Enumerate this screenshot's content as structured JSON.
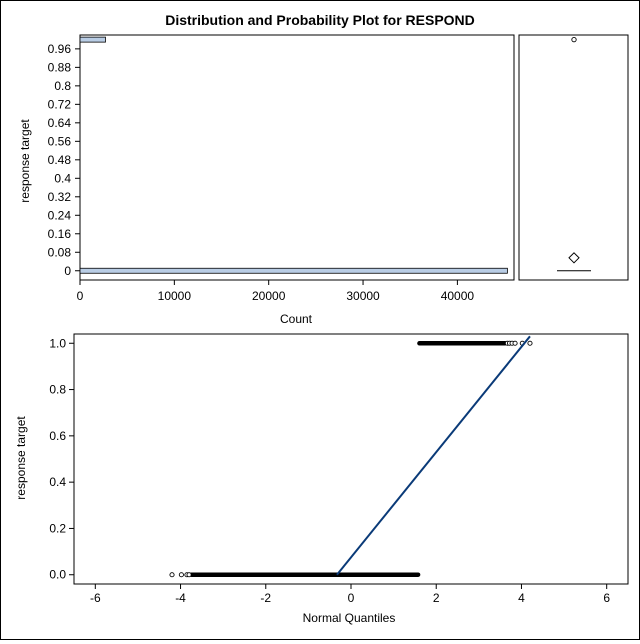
{
  "chart_data": [
    {
      "type": "bar",
      "orientation": "horizontal",
      "title": "Distribution and Probability Plot for RESPOND",
      "xlabel": "Count",
      "ylabel": "response target",
      "xlim": [
        0,
        46000
      ],
      "ylim": [
        -0.04,
        1.02
      ],
      "x_ticks": [
        0,
        10000,
        20000,
        30000,
        40000
      ],
      "y_ticks": [
        0,
        0.08,
        0.16,
        0.24,
        0.32,
        0.4,
        0.48,
        0.56,
        0.64,
        0.72,
        0.8,
        0.88,
        0.96
      ],
      "bars": [
        {
          "y": 0,
          "count": 45300
        },
        {
          "y": 1,
          "count": 2700
        }
      ],
      "bar_color": "#b9cde5",
      "grid": false
    },
    {
      "type": "box",
      "ylim": [
        -0.04,
        1.02
      ],
      "outliers": [
        1
      ],
      "mean": 0.056,
      "median": 0,
      "q1": 0,
      "q3": 0
    },
    {
      "type": "scatter",
      "xlabel": "Normal Quantiles",
      "ylabel": "response target",
      "xlim": [
        -6.5,
        6.5
      ],
      "ylim": [
        -0.04,
        1.04
      ],
      "x_ticks": [
        -6,
        -4,
        -2,
        0,
        2,
        4,
        6
      ],
      "y_ticks": [
        0.0,
        0.2,
        0.4,
        0.6,
        0.8,
        1.0
      ],
      "series": [
        {
          "y": 0,
          "dense_x_range": [
            -3.75,
            1.58
          ],
          "isolated_x": [
            -4.2,
            -3.98,
            -3.85,
            -3.8
          ]
        },
        {
          "y": 1,
          "dense_x_range": [
            1.6,
            3.62
          ],
          "isolated_x": [
            3.67,
            3.72,
            3.78,
            3.85,
            4.02,
            4.2
          ]
        }
      ],
      "reference_line": {
        "x": [
          -0.33,
          4.2
        ],
        "y": [
          0,
          1.03
        ],
        "color": "#0a3a78"
      },
      "grid": false
    }
  ]
}
